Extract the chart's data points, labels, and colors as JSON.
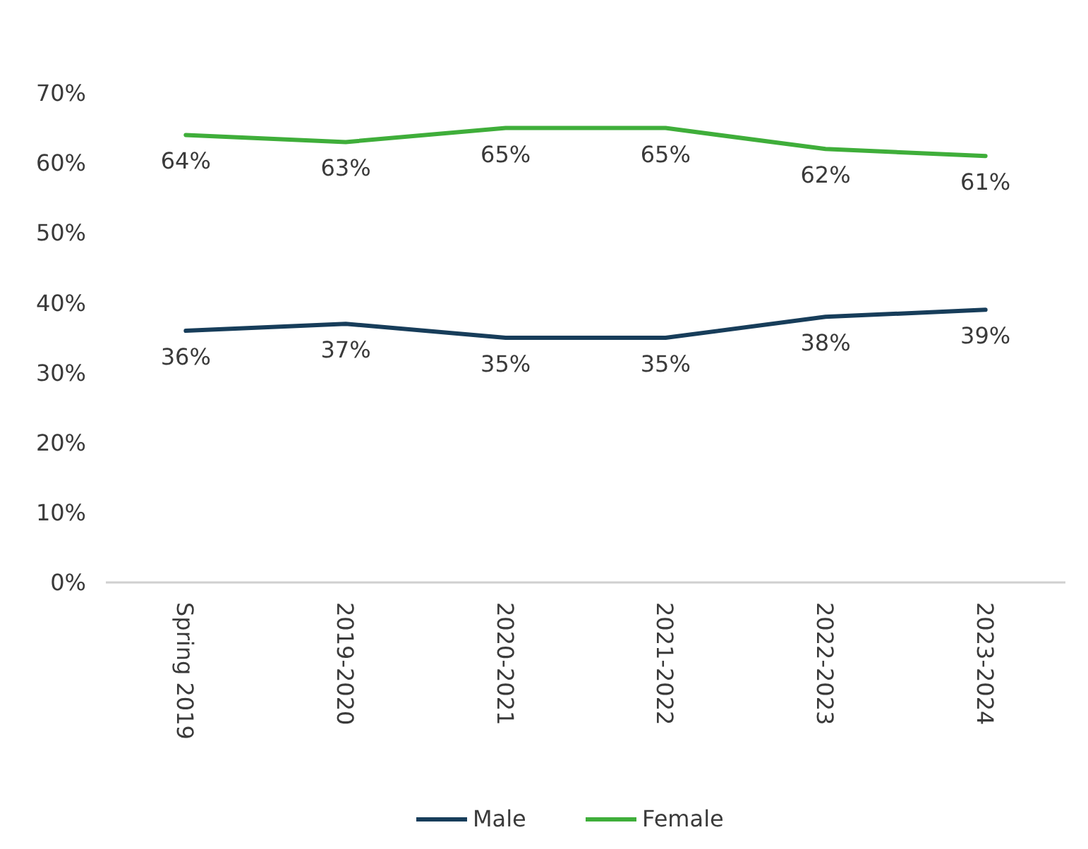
{
  "chart_data": {
    "type": "line",
    "categories": [
      "Spring 2019",
      "2019-2020",
      "2020-2021",
      "2021-2022",
      "2022-2023",
      "2023-2024"
    ],
    "series": [
      {
        "name": "Male",
        "color": "#173d5a",
        "values": [
          36,
          37,
          35,
          35,
          38,
          39
        ],
        "value_labels": [
          "36%",
          "37%",
          "35%",
          "35%",
          "38%",
          "39%"
        ]
      },
      {
        "name": "Female",
        "color": "#3fae3a",
        "values": [
          64,
          63,
          65,
          65,
          62,
          61
        ],
        "value_labels": [
          "64%",
          "63%",
          "65%",
          "65%",
          "62%",
          "61%"
        ]
      }
    ],
    "ylim": [
      0,
      70
    ],
    "yticks": [
      {
        "value": 0,
        "label": "0%"
      },
      {
        "value": 10,
        "label": "10%"
      },
      {
        "value": 20,
        "label": "20%"
      },
      {
        "value": 30,
        "label": "30%"
      },
      {
        "value": 40,
        "label": "40%"
      },
      {
        "value": 50,
        "label": "50%"
      },
      {
        "value": 60,
        "label": "60%"
      },
      {
        "value": 70,
        "label": "70%"
      }
    ],
    "grid": false,
    "legend": "bottom",
    "marker": "none",
    "line_style": "solid"
  }
}
